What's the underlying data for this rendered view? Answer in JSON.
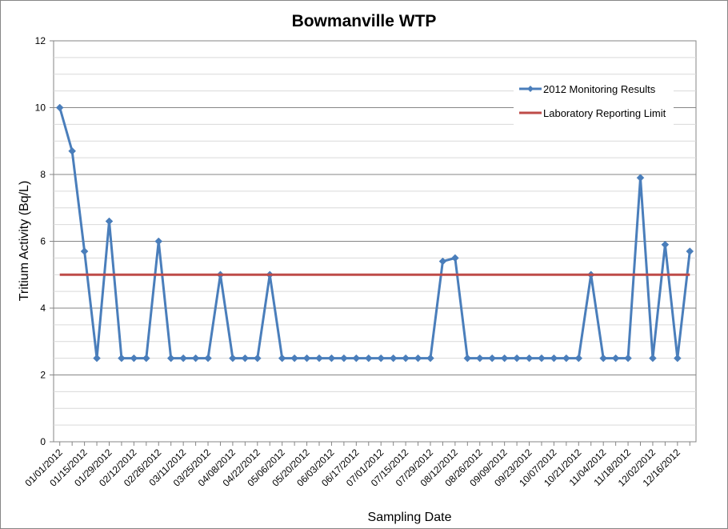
{
  "chart_data": {
    "type": "line",
    "title": "Bowmanville WTP",
    "xlabel": "Sampling Date",
    "ylabel": "Tritium Activity (Bq/L)",
    "ylim": [
      0,
      12
    ],
    "y_ticks": [
      0,
      2,
      4,
      6,
      8,
      10,
      12
    ],
    "y_minor_step": 0.5,
    "grid": true,
    "legend_position": "top-right",
    "x_tick_labels": [
      "01/01/2012",
      "01/15/2012",
      "01/29/2012",
      "02/12/2012",
      "02/26/2012",
      "03/11/2012",
      "03/25/2012",
      "04/08/2012",
      "04/22/2012",
      "05/06/2012",
      "05/20/2012",
      "06/03/2012",
      "06/17/2012",
      "07/01/2012",
      "07/15/2012",
      "07/29/2012",
      "08/12/2012",
      "08/26/2012",
      "09/09/2012",
      "09/23/2012",
      "10/07/2012",
      "10/21/2012",
      "11/04/2012",
      "11/18/2012",
      "12/02/2012",
      "12/16/2012"
    ],
    "series": [
      {
        "name": "2012 Monitoring Results",
        "color": "#4A7EBB",
        "marker": "diamond",
        "x": [
          "01/01/2012",
          "01/08/2012",
          "01/15/2012",
          "01/22/2012",
          "01/29/2012",
          "02/05/2012",
          "02/12/2012",
          "02/19/2012",
          "02/26/2012",
          "03/04/2012",
          "03/11/2012",
          "03/18/2012",
          "03/25/2012",
          "04/01/2012",
          "04/08/2012",
          "04/15/2012",
          "04/22/2012",
          "04/29/2012",
          "05/06/2012",
          "05/13/2012",
          "05/20/2012",
          "05/27/2012",
          "06/03/2012",
          "06/10/2012",
          "06/17/2012",
          "06/24/2012",
          "07/01/2012",
          "07/08/2012",
          "07/15/2012",
          "07/22/2012",
          "07/29/2012",
          "08/05/2012",
          "08/12/2012",
          "08/19/2012",
          "08/26/2012",
          "09/02/2012",
          "09/09/2012",
          "09/16/2012",
          "09/23/2012",
          "09/30/2012",
          "10/07/2012",
          "10/14/2012",
          "10/21/2012",
          "10/28/2012",
          "11/04/2012",
          "11/11/2012",
          "11/18/2012",
          "11/25/2012",
          "12/02/2012",
          "12/09/2012",
          "12/16/2012",
          "12/23/2012"
        ],
        "values": [
          10,
          8.7,
          5.7,
          2.5,
          6.6,
          2.5,
          2.5,
          2.5,
          6.0,
          2.5,
          2.5,
          2.5,
          2.5,
          5.0,
          2.5,
          2.5,
          2.5,
          5.0,
          2.5,
          2.5,
          2.5,
          2.5,
          2.5,
          2.5,
          2.5,
          2.5,
          2.5,
          2.5,
          2.5,
          2.5,
          2.5,
          5.4,
          5.5,
          2.5,
          2.5,
          2.5,
          2.5,
          2.5,
          2.5,
          2.5,
          2.5,
          2.5,
          2.5,
          5.0,
          2.5,
          2.5,
          2.5,
          7.9,
          2.5,
          5.9,
          2.5,
          5.7
        ]
      },
      {
        "name": "Laboratory Reporting Limit",
        "color": "#BE4B48",
        "marker": "none",
        "x": [
          "01/01/2012",
          "12/23/2012"
        ],
        "values": [
          5,
          5
        ]
      }
    ]
  }
}
